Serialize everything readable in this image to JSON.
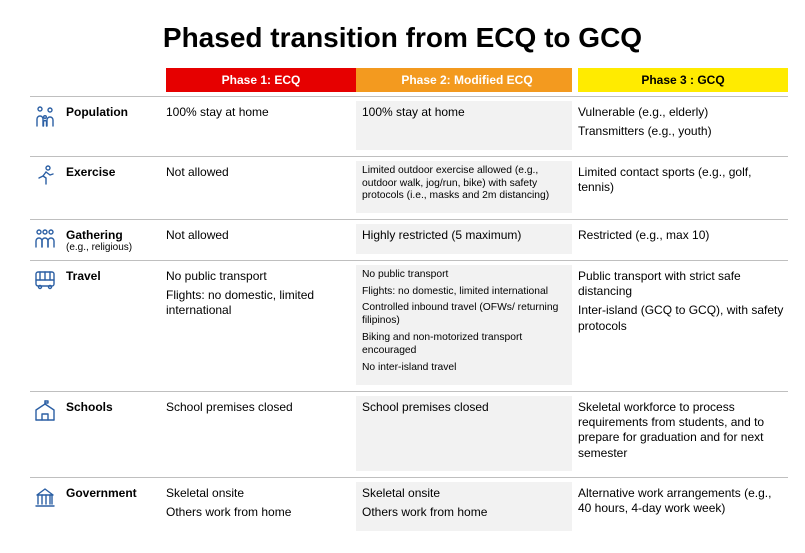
{
  "title": "Phased transition from ECQ to GCQ",
  "colors": {
    "phase1_bg": "#e60000",
    "phase2_bg": "#f39a1f",
    "phase3_bg": "#ffeb00",
    "phase3_text": "#000000",
    "header_text": "#ffffff",
    "col2_shade": "#f2f2f2",
    "divider": "#bfbfbf",
    "icon_stroke": "#2b5fa4"
  },
  "columns": {
    "phase1": "Phase 1: ECQ",
    "phase2": "Phase 2: Modified ECQ",
    "phase3": "Phase 3 : GCQ"
  },
  "rows": [
    {
      "icon": "family-icon",
      "label": "Population",
      "sublabel": "",
      "p1": [
        "100% stay at home"
      ],
      "p2": [
        "100% stay at home"
      ],
      "p2_small": false,
      "p3": [
        "Vulnerable (e.g., elderly)",
        "Transmitters (e.g., youth)"
      ]
    },
    {
      "icon": "exercise-icon",
      "label": "Exercise",
      "sublabel": "",
      "p1": [
        "Not allowed"
      ],
      "p2": [
        "Limited outdoor exercise allowed (e.g., outdoor walk, jog/run, bike) with safety protocols (i.e., masks and 2m distancing)"
      ],
      "p2_small": true,
      "p3": [
        "Limited contact sports  (e.g., golf, tennis)"
      ]
    },
    {
      "icon": "gathering-icon",
      "label": "Gathering",
      "sublabel": "(e.g., religious)",
      "p1": [
        "Not allowed"
      ],
      "p2": [
        "Highly restricted (5 maximum)"
      ],
      "p2_small": false,
      "p3": [
        "Restricted (e.g., max 10)"
      ]
    },
    {
      "icon": "bus-icon",
      "label": "Travel",
      "sublabel": "",
      "p1": [
        "No public transport",
        "Flights: no domestic, limited international"
      ],
      "p2": [
        "No public transport",
        "Flights: no domestic, limited international",
        "Controlled inbound travel (OFWs/ returning filipinos)",
        "Biking and non-motorized transport encouraged",
        "No inter-island travel"
      ],
      "p2_small": true,
      "p3": [
        "Public transport with strict safe distancing",
        "Inter-island (GCQ to GCQ), with safety protocols"
      ]
    },
    {
      "icon": "school-icon",
      "label": "Schools",
      "sublabel": "",
      "p1": [
        "School premises closed"
      ],
      "p2": [
        "School premises closed"
      ],
      "p2_small": false,
      "p3": [
        "Skeletal workforce to process requirements from students, and to  prepare for graduation and for next semester"
      ]
    },
    {
      "icon": "government-icon",
      "label": "Government",
      "sublabel": "",
      "p1": [
        "Skeletal onsite",
        "Others work from home"
      ],
      "p2": [
        "Skeletal onsite",
        "Others work from home"
      ],
      "p2_small": false,
      "p3": [
        "Alternative work arrangements (e.g., 40 hours, 4-day work week)"
      ]
    }
  ]
}
